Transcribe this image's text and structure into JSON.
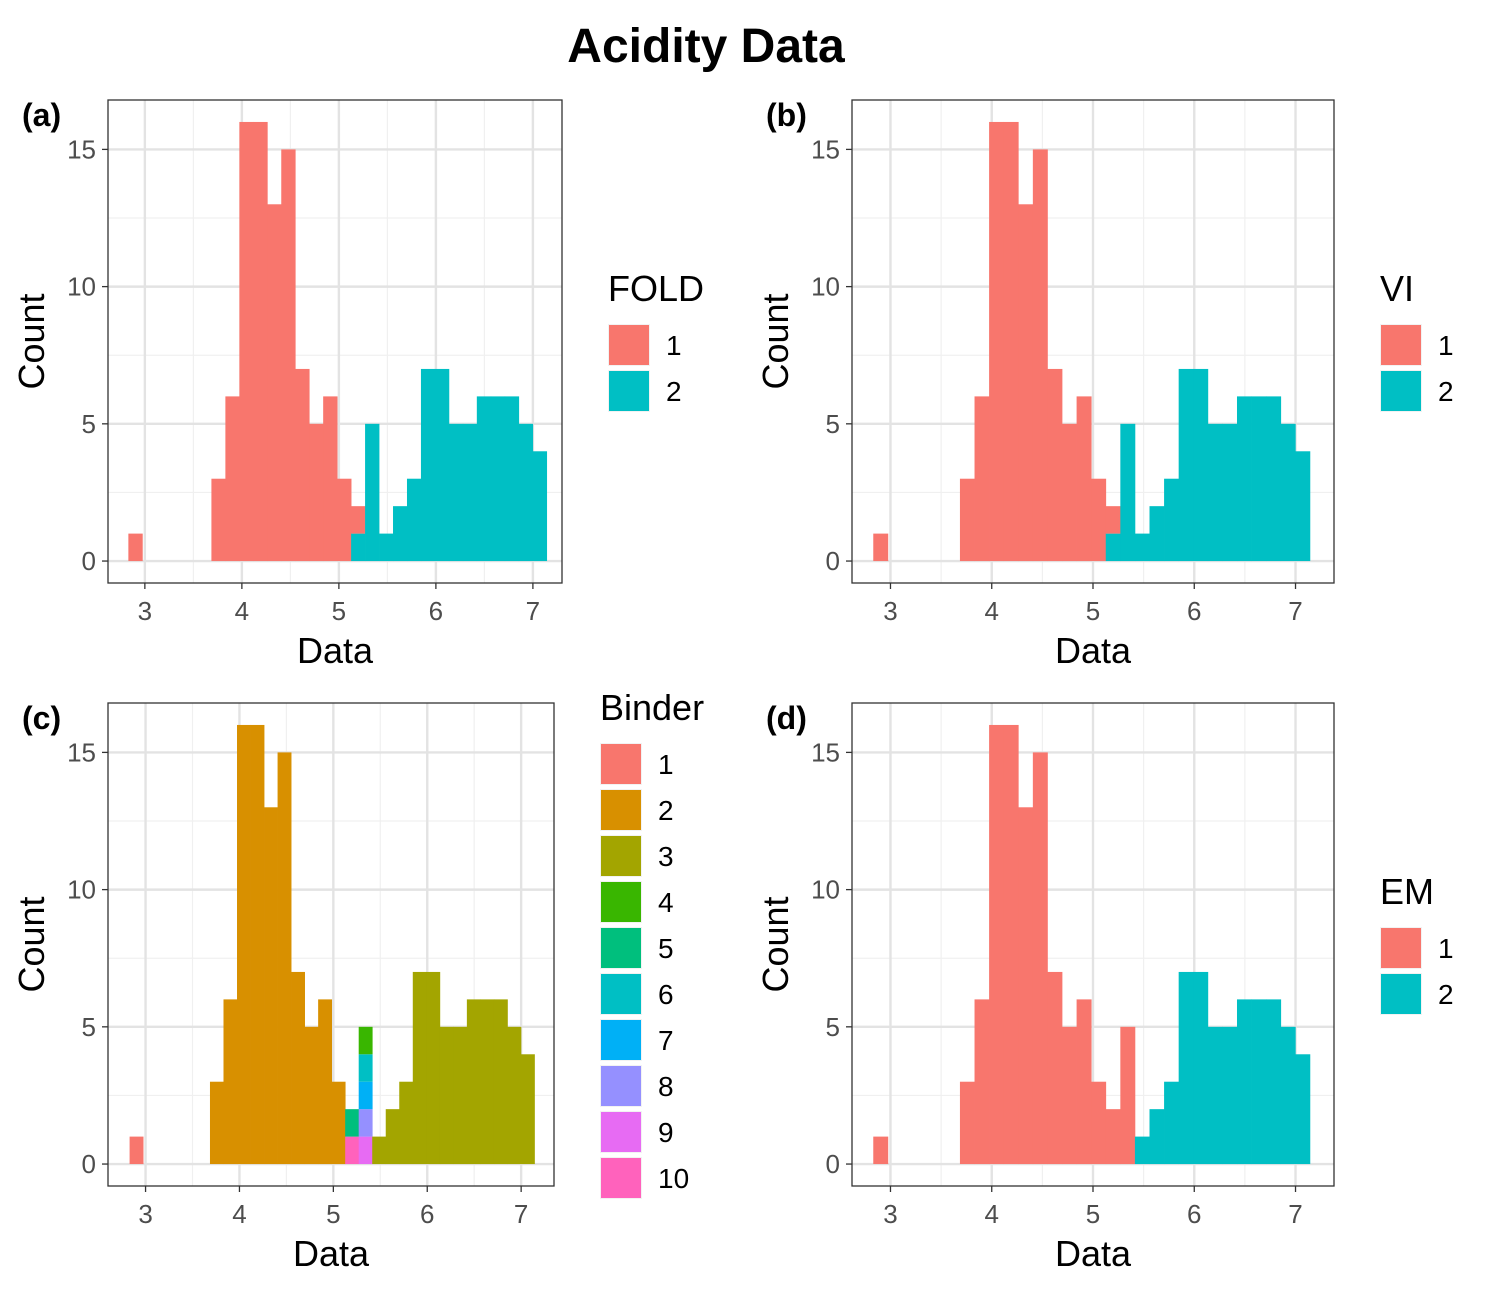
{
  "title": "Acidity Data",
  "colors": {
    "two_group": [
      "#F8766D",
      "#00BFC4"
    ],
    "binder": [
      "#F8766D",
      "#D89000",
      "#A3A500",
      "#39B600",
      "#00BF7D",
      "#00BFC4",
      "#00B0F6",
      "#9590FF",
      "#E76BF3",
      "#FF62BC"
    ]
  },
  "chart_data": [
    {
      "type": "bar",
      "subtype": "stacked-histogram",
      "panel": "(a)",
      "title": "",
      "xlabel": "Data",
      "ylabel": "Count",
      "xlim": [
        2.62,
        7.3
      ],
      "ylim": [
        -0.8,
        16.8
      ],
      "xticks": [
        "3",
        "4",
        "5",
        "6",
        "7"
      ],
      "yticks": [
        "0",
        "5",
        "10",
        "15"
      ],
      "grid": true,
      "legend": {
        "title": "FOLD",
        "entries": [
          "1",
          "2"
        ],
        "position": "right"
      },
      "bin_width": 0.1437,
      "bins": [
        {
          "x0": 2.83,
          "counts": [
            1,
            0
          ]
        },
        {
          "x0": 3.686,
          "counts": [
            3,
            0
          ]
        },
        {
          "x0": 3.83,
          "counts": [
            6,
            0
          ]
        },
        {
          "x0": 3.974,
          "counts": [
            16,
            0
          ]
        },
        {
          "x0": 4.118,
          "counts": [
            16,
            0
          ]
        },
        {
          "x0": 4.262,
          "counts": [
            13,
            0
          ]
        },
        {
          "x0": 4.406,
          "counts": [
            15,
            0
          ]
        },
        {
          "x0": 4.55,
          "counts": [
            7,
            0
          ]
        },
        {
          "x0": 4.694,
          "counts": [
            5,
            0
          ]
        },
        {
          "x0": 4.838,
          "counts": [
            6,
            0
          ]
        },
        {
          "x0": 4.982,
          "counts": [
            3,
            0
          ]
        },
        {
          "x0": 5.126,
          "counts": [
            1,
            1
          ]
        },
        {
          "x0": 5.27,
          "counts": [
            0,
            5
          ]
        },
        {
          "x0": 5.414,
          "counts": [
            0,
            1
          ]
        },
        {
          "x0": 5.558,
          "counts": [
            0,
            2
          ]
        },
        {
          "x0": 5.702,
          "counts": [
            0,
            3
          ]
        },
        {
          "x0": 5.846,
          "counts": [
            0,
            7
          ]
        },
        {
          "x0": 5.99,
          "counts": [
            0,
            7
          ]
        },
        {
          "x0": 6.134,
          "counts": [
            0,
            5
          ]
        },
        {
          "x0": 6.278,
          "counts": [
            0,
            5
          ]
        },
        {
          "x0": 6.422,
          "counts": [
            0,
            6
          ]
        },
        {
          "x0": 6.566,
          "counts": [
            0,
            6
          ]
        },
        {
          "x0": 6.71,
          "counts": [
            0,
            6
          ]
        },
        {
          "x0": 6.854,
          "counts": [
            0,
            5
          ]
        },
        {
          "x0": 6.998,
          "counts": [
            0,
            4
          ]
        }
      ]
    },
    {
      "type": "bar",
      "subtype": "stacked-histogram",
      "panel": "(b)",
      "title": "",
      "xlabel": "Data",
      "ylabel": "Count",
      "xlim": [
        2.62,
        7.38
      ],
      "ylim": [
        -0.8,
        16.8
      ],
      "xticks": [
        "3",
        "4",
        "5",
        "6",
        "7"
      ],
      "yticks": [
        "0",
        "5",
        "10",
        "15"
      ],
      "grid": true,
      "legend": {
        "title": "VI",
        "entries": [
          "1",
          "2"
        ],
        "position": "right"
      },
      "bin_width": 0.1437,
      "bins": [
        {
          "x0": 2.83,
          "counts": [
            1,
            0
          ]
        },
        {
          "x0": 3.686,
          "counts": [
            3,
            0
          ]
        },
        {
          "x0": 3.83,
          "counts": [
            6,
            0
          ]
        },
        {
          "x0": 3.974,
          "counts": [
            16,
            0
          ]
        },
        {
          "x0": 4.118,
          "counts": [
            16,
            0
          ]
        },
        {
          "x0": 4.262,
          "counts": [
            13,
            0
          ]
        },
        {
          "x0": 4.406,
          "counts": [
            15,
            0
          ]
        },
        {
          "x0": 4.55,
          "counts": [
            7,
            0
          ]
        },
        {
          "x0": 4.694,
          "counts": [
            5,
            0
          ]
        },
        {
          "x0": 4.838,
          "counts": [
            6,
            0
          ]
        },
        {
          "x0": 4.982,
          "counts": [
            3,
            0
          ]
        },
        {
          "x0": 5.126,
          "counts": [
            1,
            1
          ]
        },
        {
          "x0": 5.27,
          "counts": [
            0,
            5
          ]
        },
        {
          "x0": 5.414,
          "counts": [
            0,
            1
          ]
        },
        {
          "x0": 5.558,
          "counts": [
            0,
            2
          ]
        },
        {
          "x0": 5.702,
          "counts": [
            0,
            3
          ]
        },
        {
          "x0": 5.846,
          "counts": [
            0,
            7
          ]
        },
        {
          "x0": 5.99,
          "counts": [
            0,
            7
          ]
        },
        {
          "x0": 6.134,
          "counts": [
            0,
            5
          ]
        },
        {
          "x0": 6.278,
          "counts": [
            0,
            5
          ]
        },
        {
          "x0": 6.422,
          "counts": [
            0,
            6
          ]
        },
        {
          "x0": 6.566,
          "counts": [
            0,
            6
          ]
        },
        {
          "x0": 6.71,
          "counts": [
            0,
            6
          ]
        },
        {
          "x0": 6.854,
          "counts": [
            0,
            5
          ]
        },
        {
          "x0": 6.998,
          "counts": [
            0,
            4
          ]
        }
      ]
    },
    {
      "type": "bar",
      "subtype": "stacked-histogram",
      "panel": "(c)",
      "title": "",
      "xlabel": "Data",
      "ylabel": "Count",
      "xlim": [
        2.6,
        7.35
      ],
      "ylim": [
        -0.8,
        16.8
      ],
      "xticks": [
        "3",
        "4",
        "5",
        "6",
        "7"
      ],
      "yticks": [
        "0",
        "5",
        "10",
        "15"
      ],
      "grid": true,
      "legend": {
        "title": "Binder",
        "entries": [
          "1",
          "2",
          "3",
          "4",
          "5",
          "6",
          "7",
          "8",
          "9",
          "10"
        ],
        "position": "right"
      },
      "bin_width": 0.1437,
      "bins": [
        {
          "x0": 2.83,
          "counts": [
            1,
            0,
            0,
            0,
            0,
            0,
            0,
            0,
            0,
            0
          ]
        },
        {
          "x0": 3.686,
          "counts": [
            0,
            3,
            0,
            0,
            0,
            0,
            0,
            0,
            0,
            0
          ]
        },
        {
          "x0": 3.83,
          "counts": [
            0,
            6,
            0,
            0,
            0,
            0,
            0,
            0,
            0,
            0
          ]
        },
        {
          "x0": 3.974,
          "counts": [
            0,
            16,
            0,
            0,
            0,
            0,
            0,
            0,
            0,
            0
          ]
        },
        {
          "x0": 4.118,
          "counts": [
            0,
            16,
            0,
            0,
            0,
            0,
            0,
            0,
            0,
            0
          ]
        },
        {
          "x0": 4.262,
          "counts": [
            0,
            13,
            0,
            0,
            0,
            0,
            0,
            0,
            0,
            0
          ]
        },
        {
          "x0": 4.406,
          "counts": [
            0,
            15,
            0,
            0,
            0,
            0,
            0,
            0,
            0,
            0
          ]
        },
        {
          "x0": 4.55,
          "counts": [
            0,
            7,
            0,
            0,
            0,
            0,
            0,
            0,
            0,
            0
          ]
        },
        {
          "x0": 4.694,
          "counts": [
            0,
            5,
            0,
            0,
            0,
            0,
            0,
            0,
            0,
            0
          ]
        },
        {
          "x0": 4.838,
          "counts": [
            0,
            6,
            0,
            0,
            0,
            0,
            0,
            0,
            0,
            0
          ]
        },
        {
          "x0": 4.982,
          "counts": [
            0,
            3,
            0,
            0,
            0,
            0,
            0,
            0,
            0,
            0
          ]
        },
        {
          "x0": 5.126,
          "counts": [
            0,
            0,
            0,
            0,
            1,
            0,
            0,
            0,
            0,
            1
          ]
        },
        {
          "x0": 5.27,
          "counts": [
            0,
            0,
            0,
            1,
            0,
            1,
            1,
            1,
            1,
            0
          ]
        },
        {
          "x0": 5.414,
          "counts": [
            0,
            0,
            1,
            0,
            0,
            0,
            0,
            0,
            0,
            0
          ]
        },
        {
          "x0": 5.558,
          "counts": [
            0,
            0,
            2,
            0,
            0,
            0,
            0,
            0,
            0,
            0
          ]
        },
        {
          "x0": 5.702,
          "counts": [
            0,
            0,
            3,
            0,
            0,
            0,
            0,
            0,
            0,
            0
          ]
        },
        {
          "x0": 5.846,
          "counts": [
            0,
            0,
            7,
            0,
            0,
            0,
            0,
            0,
            0,
            0
          ]
        },
        {
          "x0": 5.99,
          "counts": [
            0,
            0,
            7,
            0,
            0,
            0,
            0,
            0,
            0,
            0
          ]
        },
        {
          "x0": 6.134,
          "counts": [
            0,
            0,
            5,
            0,
            0,
            0,
            0,
            0,
            0,
            0
          ]
        },
        {
          "x0": 6.278,
          "counts": [
            0,
            0,
            5,
            0,
            0,
            0,
            0,
            0,
            0,
            0
          ]
        },
        {
          "x0": 6.422,
          "counts": [
            0,
            0,
            6,
            0,
            0,
            0,
            0,
            0,
            0,
            0
          ]
        },
        {
          "x0": 6.566,
          "counts": [
            0,
            0,
            6,
            0,
            0,
            0,
            0,
            0,
            0,
            0
          ]
        },
        {
          "x0": 6.71,
          "counts": [
            0,
            0,
            6,
            0,
            0,
            0,
            0,
            0,
            0,
            0
          ]
        },
        {
          "x0": 6.854,
          "counts": [
            0,
            0,
            5,
            0,
            0,
            0,
            0,
            0,
            0,
            0
          ]
        },
        {
          "x0": 6.998,
          "counts": [
            0,
            0,
            4,
            0,
            0,
            0,
            0,
            0,
            0,
            0
          ]
        }
      ]
    },
    {
      "type": "bar",
      "subtype": "stacked-histogram",
      "panel": "(d)",
      "title": "",
      "xlabel": "Data",
      "ylabel": "Count",
      "xlim": [
        2.62,
        7.38
      ],
      "ylim": [
        -0.8,
        16.8
      ],
      "xticks": [
        "3",
        "4",
        "5",
        "6",
        "7"
      ],
      "yticks": [
        "0",
        "5",
        "10",
        "15"
      ],
      "grid": true,
      "legend": {
        "title": "EM",
        "entries": [
          "1",
          "2"
        ],
        "position": "right"
      },
      "bin_width": 0.1437,
      "bins": [
        {
          "x0": 2.83,
          "counts": [
            1,
            0
          ]
        },
        {
          "x0": 3.686,
          "counts": [
            3,
            0
          ]
        },
        {
          "x0": 3.83,
          "counts": [
            6,
            0
          ]
        },
        {
          "x0": 3.974,
          "counts": [
            16,
            0
          ]
        },
        {
          "x0": 4.118,
          "counts": [
            16,
            0
          ]
        },
        {
          "x0": 4.262,
          "counts": [
            13,
            0
          ]
        },
        {
          "x0": 4.406,
          "counts": [
            15,
            0
          ]
        },
        {
          "x0": 4.55,
          "counts": [
            7,
            0
          ]
        },
        {
          "x0": 4.694,
          "counts": [
            5,
            0
          ]
        },
        {
          "x0": 4.838,
          "counts": [
            6,
            0
          ]
        },
        {
          "x0": 4.982,
          "counts": [
            3,
            0
          ]
        },
        {
          "x0": 5.126,
          "counts": [
            2,
            0
          ]
        },
        {
          "x0": 5.27,
          "counts": [
            5,
            0
          ]
        },
        {
          "x0": 5.414,
          "counts": [
            0,
            1
          ]
        },
        {
          "x0": 5.558,
          "counts": [
            0,
            2
          ]
        },
        {
          "x0": 5.702,
          "counts": [
            0,
            3
          ]
        },
        {
          "x0": 5.846,
          "counts": [
            0,
            7
          ]
        },
        {
          "x0": 5.99,
          "counts": [
            0,
            7
          ]
        },
        {
          "x0": 6.134,
          "counts": [
            0,
            5
          ]
        },
        {
          "x0": 6.278,
          "counts": [
            0,
            5
          ]
        },
        {
          "x0": 6.422,
          "counts": [
            0,
            6
          ]
        },
        {
          "x0": 6.566,
          "counts": [
            0,
            6
          ]
        },
        {
          "x0": 6.71,
          "counts": [
            0,
            6
          ]
        },
        {
          "x0": 6.854,
          "counts": [
            0,
            5
          ]
        },
        {
          "x0": 6.998,
          "counts": [
            0,
            4
          ]
        }
      ]
    }
  ]
}
